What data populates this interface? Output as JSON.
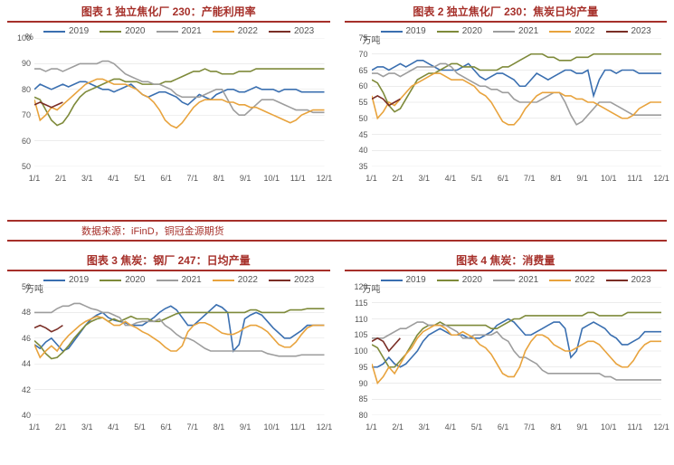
{
  "colors": {
    "title": "#a6302a",
    "rule": "#a6302a",
    "s2019": "#3a6fb0",
    "s2020": "#7e8a3a",
    "s2021": "#9d9d9d",
    "s2022": "#e8a33d",
    "s2023": "#7a2e26",
    "grid": "#d9d9d9",
    "axis": "#555555",
    "source": "#a6302a",
    "bg": "#ffffff"
  },
  "source": "数据来源：iFinD，铜冠金源期货",
  "x_labels": [
    "1/1",
    "2/1",
    "3/1",
    "4/1",
    "5/1",
    "6/1",
    "7/1",
    "8/1",
    "9/1",
    "10/1",
    "11/1",
    "12/1"
  ],
  "legend_labels": [
    "2019",
    "2020",
    "2021",
    "2022",
    "2023"
  ],
  "charts": [
    {
      "title": "图表 1 独立焦化厂 230：产能利用率",
      "y_unit": "%",
      "ylim": [
        50,
        100
      ],
      "ystep": 10,
      "series": {
        "2019": [
          80,
          82,
          81,
          80,
          81,
          82,
          81,
          82,
          83,
          83,
          82,
          81,
          80,
          80,
          79,
          80,
          81,
          82,
          80,
          78,
          77,
          78,
          79,
          79,
          78,
          77,
          75,
          74,
          76,
          78,
          77,
          76,
          78,
          79,
          80,
          80,
          79,
          79,
          80,
          81,
          80,
          80,
          80,
          79,
          80,
          80,
          80,
          79,
          79,
          79,
          79,
          79
        ],
        "2020": [
          77,
          76,
          72,
          68,
          66,
          67,
          70,
          74,
          77,
          79,
          80,
          81,
          82,
          83,
          84,
          84,
          83,
          83,
          83,
          82,
          82,
          82,
          82,
          83,
          83,
          84,
          85,
          86,
          87,
          87,
          88,
          87,
          87,
          86,
          86,
          86,
          87,
          87,
          87,
          88,
          88,
          88,
          88,
          88,
          88,
          88,
          88,
          88,
          88,
          88,
          88,
          88
        ],
        "2021": [
          88,
          88,
          87,
          88,
          88,
          87,
          88,
          89,
          90,
          90,
          90,
          90,
          91,
          91,
          90,
          88,
          86,
          85,
          84,
          83,
          83,
          82,
          82,
          81,
          80,
          78,
          77,
          77,
          77,
          77,
          78,
          79,
          80,
          80,
          76,
          72,
          70,
          70,
          72,
          74,
          76,
          76,
          76,
          75,
          74,
          73,
          72,
          72,
          72,
          71,
          71,
          71
        ],
        "2022": [
          76,
          68,
          70,
          73,
          72,
          74,
          76,
          78,
          80,
          82,
          83,
          84,
          84,
          83,
          82,
          82,
          82,
          81,
          80,
          78,
          77,
          75,
          72,
          68,
          66,
          65,
          67,
          70,
          73,
          75,
          76,
          76,
          76,
          76,
          75,
          75,
          74,
          74,
          73,
          73,
          72,
          71,
          70,
          69,
          68,
          67,
          68,
          70,
          71,
          72,
          72,
          72
        ],
        "2023": [
          74,
          75,
          74,
          73,
          74,
          75
        ]
      }
    },
    {
      "title": "图表 2 独立焦化厂 230：焦炭日均产量",
      "y_unit": "万吨",
      "ylim": [
        35,
        75
      ],
      "ystep": 5,
      "series": {
        "2019": [
          65,
          66,
          66,
          65,
          66,
          67,
          66,
          67,
          68,
          68,
          67,
          66,
          65,
          65,
          65,
          65,
          66,
          67,
          65,
          63,
          62,
          63,
          64,
          64,
          63,
          62,
          60,
          60,
          62,
          64,
          63,
          62,
          63,
          64,
          65,
          65,
          64,
          64,
          65,
          57,
          62,
          65,
          65,
          64,
          65,
          65,
          65,
          64,
          64,
          64,
          64,
          64
        ],
        "2020": [
          62,
          61,
          58,
          54,
          52,
          53,
          56,
          59,
          62,
          63,
          64,
          64,
          65,
          66,
          67,
          67,
          66,
          66,
          66,
          65,
          65,
          65,
          65,
          66,
          66,
          67,
          68,
          69,
          70,
          70,
          70,
          69,
          69,
          68,
          68,
          68,
          69,
          69,
          69,
          70,
          70,
          70,
          70,
          70,
          70,
          70,
          70,
          70,
          70,
          70,
          70,
          70
        ],
        "2021": [
          64,
          64,
          63,
          64,
          64,
          63,
          64,
          65,
          66,
          66,
          66,
          66,
          67,
          67,
          66,
          64,
          63,
          62,
          61,
          60,
          60,
          59,
          59,
          58,
          58,
          56,
          55,
          55,
          55,
          55,
          56,
          57,
          58,
          58,
          55,
          51,
          48,
          49,
          51,
          53,
          55,
          55,
          55,
          54,
          53,
          52,
          51,
          51,
          51,
          51,
          51,
          51
        ],
        "2022": [
          57,
          50,
          52,
          55,
          54,
          56,
          58,
          60,
          61,
          62,
          63,
          64,
          64,
          63,
          62,
          62,
          62,
          61,
          60,
          58,
          57,
          55,
          52,
          49,
          48,
          48,
          50,
          53,
          55,
          57,
          58,
          58,
          58,
          58,
          57,
          57,
          56,
          56,
          55,
          55,
          54,
          53,
          52,
          51,
          50,
          50,
          51,
          53,
          54,
          55,
          55,
          55
        ],
        "2023": [
          56,
          57,
          56,
          54,
          55,
          56
        ]
      }
    },
    {
      "title": "图表 3 焦炭：钢厂 247：日均产量",
      "y_unit": "万吨",
      "ylim": [
        40,
        50
      ],
      "ystep": 2,
      "series": {
        "2019": [
          45.5,
          45.2,
          45.7,
          46,
          45.5,
          45,
          45.2,
          45.8,
          46.4,
          47,
          47.5,
          47.8,
          48,
          47.6,
          47.4,
          47.3,
          47.2,
          47,
          47,
          47,
          47.3,
          47.6,
          48,
          48.3,
          48.5,
          48.2,
          47.6,
          47,
          47,
          47.4,
          47.8,
          48.2,
          48.6,
          48.4,
          48,
          45,
          45.5,
          47.5,
          47.8,
          48,
          47.8,
          47.3,
          46.8,
          46.4,
          46,
          46,
          46.3,
          46.6,
          47,
          47,
          47,
          47
        ],
        "2020": [
          45.8,
          45.4,
          44.8,
          44.4,
          44.5,
          44.9,
          45.4,
          46,
          46.5,
          47,
          47.3,
          47.5,
          47.6,
          47.3,
          47.5,
          47.3,
          47.5,
          47.7,
          47.5,
          47.5,
          47.5,
          47.3,
          47.3,
          47.5,
          47.7,
          47.9,
          48,
          48,
          48,
          48,
          48,
          48,
          48,
          48,
          48,
          48,
          48,
          48,
          48.2,
          48.2,
          48,
          48,
          48,
          48,
          48,
          48.2,
          48.2,
          48.2,
          48.3,
          48.3,
          48.3,
          48.3
        ],
        "2021": [
          48,
          48,
          48,
          48,
          48.3,
          48.5,
          48.5,
          48.7,
          48.7,
          48.5,
          48.3,
          48.2,
          48,
          48,
          47.8,
          47.6,
          47,
          47,
          47.2,
          47.3,
          47.3,
          47.3,
          47.5,
          47,
          46.7,
          46.3,
          46,
          46,
          45.8,
          45.5,
          45.2,
          45,
          45,
          45,
          45,
          45,
          45,
          45,
          45,
          45,
          45,
          44.8,
          44.7,
          44.6,
          44.6,
          44.6,
          44.6,
          44.7,
          44.7,
          44.7,
          44.7,
          44.7
        ],
        "2022": [
          45.5,
          44.5,
          45,
          45.4,
          45,
          45.7,
          46.2,
          46.6,
          47,
          47.3,
          47.5,
          47.7,
          47.6,
          47.3,
          47,
          47,
          47.3,
          47,
          46.8,
          46.5,
          46.3,
          46,
          45.7,
          45.3,
          45,
          45,
          45.4,
          46.5,
          47,
          47.2,
          47.2,
          47,
          46.7,
          46.4,
          46.3,
          46.3,
          46.5,
          46.8,
          47,
          47,
          46.8,
          46.5,
          46,
          45.5,
          45.3,
          45.3,
          45.7,
          46.3,
          46.8,
          47,
          47,
          47
        ],
        "2023": [
          46.8,
          47,
          46.8,
          46.5,
          46.7,
          47
        ]
      }
    },
    {
      "title": "图表 4 焦炭：消费量",
      "y_unit": "万吨",
      "ylim": [
        80,
        120
      ],
      "ystep": 5,
      "series": {
        "2019": [
          95,
          95,
          96,
          98,
          96,
          95,
          96,
          98,
          100,
          103,
          105,
          106,
          107,
          106,
          105,
          105,
          105,
          104,
          104,
          104,
          105,
          106,
          108,
          109,
          110,
          109,
          107,
          105,
          105,
          106,
          107,
          108,
          109,
          109,
          107,
          98,
          100,
          107,
          108,
          109,
          108,
          107,
          105,
          104,
          102,
          102,
          103,
          104,
          106,
          106,
          106,
          106
        ],
        "2020": [
          102,
          101,
          98,
          95,
          95,
          97,
          99,
          102,
          105,
          107,
          108,
          108,
          109,
          108,
          108,
          108,
          108,
          108,
          108,
          108,
          108,
          107,
          107,
          108,
          109,
          110,
          110,
          111,
          111,
          111,
          111,
          111,
          111,
          111,
          111,
          111,
          111,
          111,
          112,
          112,
          111,
          111,
          111,
          111,
          111,
          112,
          112,
          112,
          112,
          112,
          112,
          112
        ],
        "2021": [
          104,
          104,
          104,
          105,
          106,
          107,
          107,
          108,
          109,
          109,
          108,
          108,
          108,
          108,
          107,
          106,
          104,
          104,
          105,
          105,
          105,
          105,
          106,
          104,
          103,
          100,
          98,
          98,
          97,
          96,
          94,
          93,
          93,
          93,
          93,
          93,
          93,
          93,
          93,
          93,
          93,
          92,
          92,
          91,
          91,
          91,
          91,
          91,
          91,
          91,
          91,
          91
        ],
        "2022": [
          96,
          90,
          92,
          95,
          93,
          96,
          99,
          101,
          104,
          106,
          107,
          108,
          108,
          107,
          105,
          105,
          106,
          105,
          104,
          102,
          101,
          99,
          96,
          93,
          92,
          92,
          95,
          100,
          103,
          105,
          105,
          104,
          102,
          101,
          100,
          100,
          101,
          102,
          103,
          103,
          102,
          100,
          98,
          96,
          95,
          95,
          97,
          100,
          102,
          103,
          103,
          103
        ],
        "2023": [
          103,
          104,
          103,
          100,
          102,
          104
        ]
      }
    }
  ]
}
